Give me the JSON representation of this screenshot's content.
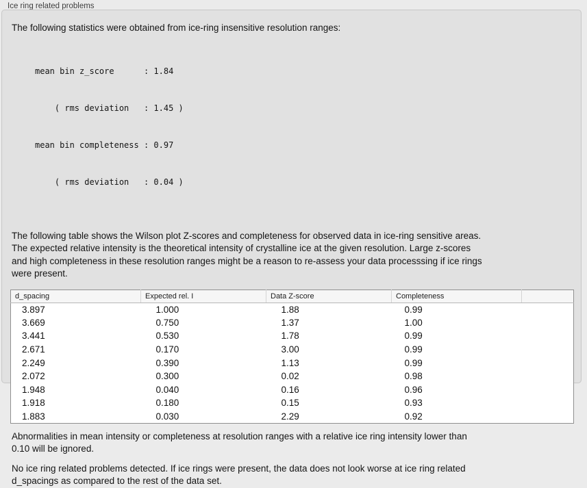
{
  "panel": {
    "title": "Ice ring related problems",
    "intro": "The following statistics were obtained from ice-ring insensitive resolution ranges:",
    "stats_lines": [
      "mean bin z_score      : 1.84",
      "    ( rms deviation   : 1.45 )",
      "mean bin completeness : 0.97",
      "    ( rms deviation   : 0.04 )"
    ],
    "statistics": {
      "mean_bin_z_score": "1.84",
      "z_score_rms_deviation": "1.45",
      "mean_bin_completeness": "0.97",
      "completeness_rms_deviation": "0.04"
    },
    "table_desc_lines": [
      "The following table shows the Wilson plot Z-scores and completeness for observed data in ice-ring sensitive areas.",
      "The expected relative intensity is the theoretical intensity of crystalline ice at the given resolution. Large z-scores",
      "and high completeness in these resolution ranges might be a reason to re-assess your data processsing if ice rings",
      "were present."
    ],
    "ignore_note_lines": [
      "Abnormalities in mean intensity or completeness at resolution ranges with a relative ice ring intensity lower than",
      "0.10 will be ignored."
    ],
    "conclusion_lines": [
      "No ice ring related problems detected. If ice rings were present, the data does not look worse at ice ring related",
      "d_spacings as compared to the rest of the data set."
    ]
  },
  "table": {
    "columns": [
      "d_spacing",
      "Expected rel. I",
      "Data Z-score",
      "Completeness",
      ""
    ],
    "rows": [
      [
        "3.897",
        "1.000",
        "1.88",
        "0.99"
      ],
      [
        "3.669",
        "0.750",
        "1.37",
        "1.00"
      ],
      [
        "3.441",
        "0.530",
        "1.78",
        "0.99"
      ],
      [
        "2.671",
        "0.170",
        "3.00",
        "0.99"
      ],
      [
        "2.249",
        "0.390",
        "1.13",
        "0.99"
      ],
      [
        "2.072",
        "0.300",
        "0.02",
        "0.98"
      ],
      [
        "1.948",
        "0.040",
        "0.16",
        "0.96"
      ],
      [
        "1.918",
        "0.180",
        "0.15",
        "0.93"
      ],
      [
        "1.883",
        "0.030",
        "2.29",
        "0.92"
      ]
    ]
  },
  "colors": {
    "page_background": "#ebebeb",
    "groupbox_background": "#e1e1e1",
    "table_header_background": "#f6f6f6",
    "table_border": "#8f8f8f",
    "text": "#141414"
  }
}
